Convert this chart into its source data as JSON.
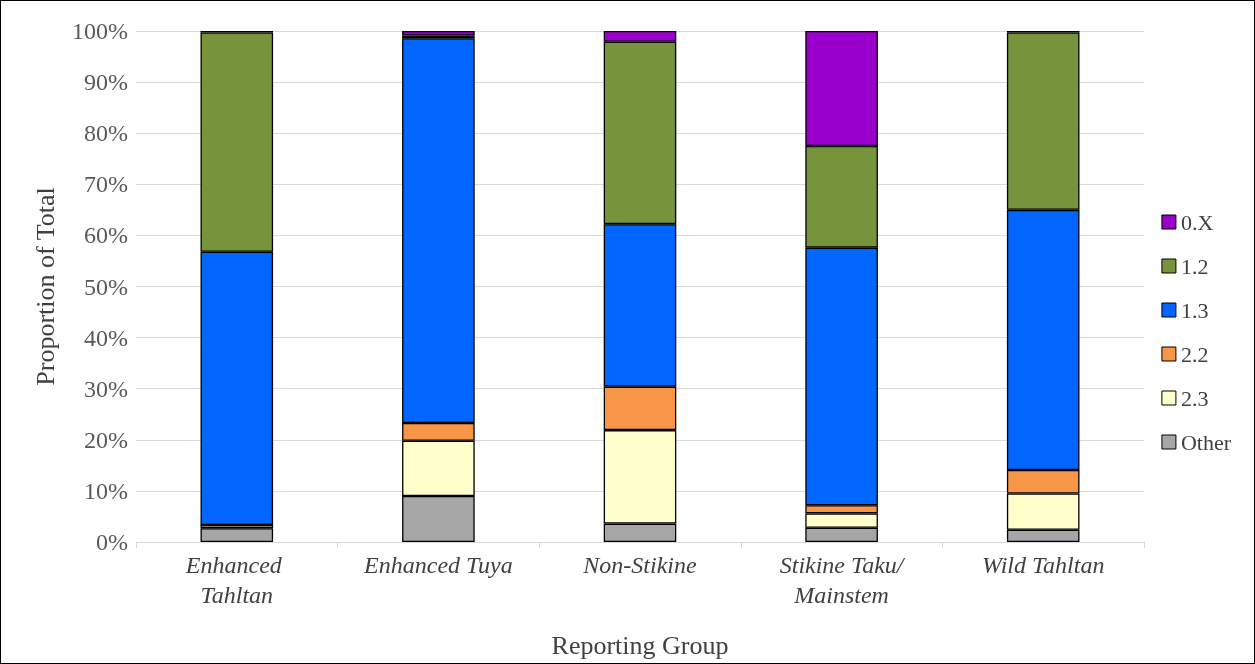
{
  "chart_data": {
    "type": "bar",
    "stacked": true,
    "xlabel": "Reporting Group",
    "ylabel": "Proportion of Total",
    "categories": [
      "Enhanced Tahltan",
      "Enhanced Tuya",
      "Non-Stikine",
      "Stikine Taku/Mainstem",
      "Wild Tahltan"
    ],
    "series": [
      {
        "name": "Other",
        "color": "#a6a6a6",
        "values": [
          2.7,
          9.0,
          3.6,
          2.8,
          2.4
        ]
      },
      {
        "name": "2.3",
        "color": "#ffffcc",
        "values": [
          0.6,
          10.8,
          18.3,
          2.8,
          7.1
        ]
      },
      {
        "name": "2.2",
        "color": "#f79646",
        "values": [
          0,
          3.5,
          8.5,
          1.6,
          4.6
        ]
      },
      {
        "name": "1.3",
        "color": "#0066ff",
        "values": [
          53.5,
          75.3,
          31.8,
          50.4,
          50.9
        ]
      },
      {
        "name": "1.2",
        "color": "#77933c",
        "values": [
          42.9,
          0.5,
          35.7,
          19.9,
          34.7
        ]
      },
      {
        "name": "0.X",
        "color": "#9900cc",
        "values": [
          0.3,
          0.9,
          2.1,
          22.5,
          0.3
        ]
      }
    ],
    "ylim": [
      0,
      100
    ],
    "yticks": [
      {
        "value": 0,
        "label": "0%"
      },
      {
        "value": 10,
        "label": "10%"
      },
      {
        "value": 20,
        "label": "20%"
      },
      {
        "value": 30,
        "label": "30%"
      },
      {
        "value": 40,
        "label": "40%"
      },
      {
        "value": 50,
        "label": "50%"
      },
      {
        "value": 60,
        "label": "60%"
      },
      {
        "value": 70,
        "label": "70%"
      },
      {
        "value": 80,
        "label": "80%"
      },
      {
        "value": 90,
        "label": "90%"
      },
      {
        "value": 100,
        "label": "100%"
      }
    ],
    "grid": "y",
    "legend": "right"
  }
}
